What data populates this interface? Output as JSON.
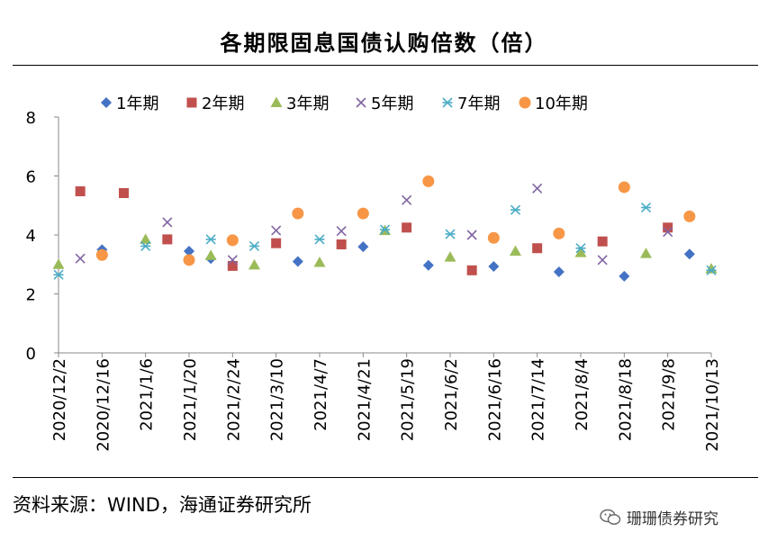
{
  "title": "各期限固息国债认购倍数（倍）",
  "source": "资料来源：WIND，海通证券研究所",
  "watermark": "珊珊债券研究",
  "chart_data": {
    "type": "scatter",
    "title": "各期限固息国债认购倍数（倍）",
    "ylim": [
      0,
      8
    ],
    "yticks": [
      0,
      2,
      4,
      6,
      8
    ],
    "x_tick_labels": [
      "2020/12/2",
      "2020/12/16",
      "2021/1/6",
      "2021/1/20",
      "2021/2/24",
      "2021/3/10",
      "2021/4/7",
      "2021/4/21",
      "2021/5/19",
      "2021/6/2",
      "2021/6/16",
      "2021/7/14",
      "2021/8/4",
      "2021/8/18",
      "2021/9/8",
      "2021/10/13"
    ],
    "n_slots": 31,
    "series": [
      {
        "name": "1年期",
        "marker": "diamond",
        "color": "#4472C4",
        "points": [
          [
            2,
            3.5
          ],
          [
            6,
            3.45
          ],
          [
            7,
            3.2
          ],
          [
            11,
            3.1
          ],
          [
            14,
            3.6
          ],
          [
            17,
            2.97
          ],
          [
            20,
            2.93
          ],
          [
            23,
            2.75
          ],
          [
            26,
            2.6
          ],
          [
            29,
            3.35
          ]
        ]
      },
      {
        "name": "2年期",
        "marker": "square",
        "color": "#C0504D",
        "points": [
          [
            1,
            5.48
          ],
          [
            3,
            5.42
          ],
          [
            5,
            3.85
          ],
          [
            8,
            2.95
          ],
          [
            10,
            3.72
          ],
          [
            13,
            3.68
          ],
          [
            16,
            4.25
          ],
          [
            19,
            2.8
          ],
          [
            22,
            3.55
          ],
          [
            25,
            3.78
          ],
          [
            28,
            4.25
          ]
        ]
      },
      {
        "name": "3年期",
        "marker": "triangle",
        "color": "#9BBB59",
        "points": [
          [
            0,
            3.0
          ],
          [
            4,
            3.85
          ],
          [
            7,
            3.3
          ],
          [
            9,
            2.98
          ],
          [
            12,
            3.07
          ],
          [
            15,
            4.15
          ],
          [
            18,
            3.25
          ],
          [
            21,
            3.45
          ],
          [
            24,
            3.4
          ],
          [
            27,
            3.37
          ],
          [
            30,
            2.85
          ]
        ]
      },
      {
        "name": "5年期",
        "marker": "x",
        "color": "#8064A2",
        "points": [
          [
            1,
            3.2
          ],
          [
            5,
            4.43
          ],
          [
            8,
            3.15
          ],
          [
            10,
            4.15
          ],
          [
            13,
            4.13
          ],
          [
            16,
            5.18
          ],
          [
            19,
            4.0
          ],
          [
            22,
            5.58
          ],
          [
            25,
            3.15
          ],
          [
            28,
            4.1
          ]
        ]
      },
      {
        "name": "7年期",
        "marker": "star",
        "color": "#4BACC6",
        "points": [
          [
            0,
            2.65
          ],
          [
            4,
            3.62
          ],
          [
            7,
            3.85
          ],
          [
            9,
            3.62
          ],
          [
            12,
            3.85
          ],
          [
            15,
            4.18
          ],
          [
            18,
            4.03
          ],
          [
            21,
            4.85
          ],
          [
            24,
            3.55
          ],
          [
            27,
            4.93
          ],
          [
            30,
            2.8
          ]
        ]
      },
      {
        "name": "10年期",
        "marker": "circle",
        "color": "#F79646",
        "points": [
          [
            2,
            3.32
          ],
          [
            6,
            3.15
          ],
          [
            8,
            3.82
          ],
          [
            11,
            4.73
          ],
          [
            14,
            4.73
          ],
          [
            17,
            5.82
          ],
          [
            20,
            3.9
          ],
          [
            23,
            4.05
          ],
          [
            26,
            5.62
          ],
          [
            29,
            4.63
          ]
        ]
      }
    ]
  }
}
